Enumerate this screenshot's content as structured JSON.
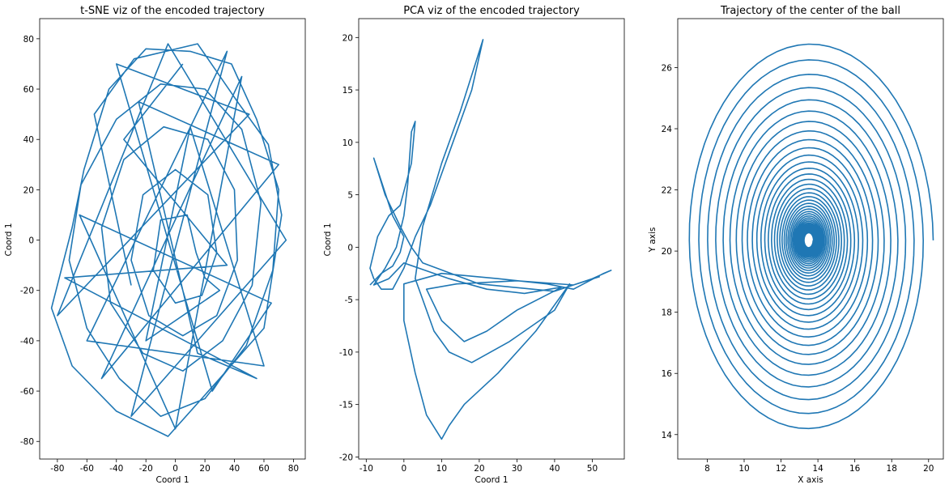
{
  "colors": {
    "series": "#1f77b4",
    "axes": "#000000",
    "background": "#ffffff"
  },
  "chart_data": [
    {
      "type": "line",
      "title": "t-SNE viz of the encoded trajectory",
      "xlabel": "Coord 1",
      "ylabel": "Coord 1",
      "xlim": [
        -92,
        88
      ],
      "ylim": [
        -87,
        88
      ],
      "xticks": [
        -80,
        -60,
        -40,
        -20,
        0,
        20,
        40,
        60,
        80
      ],
      "yticks": [
        -80,
        -60,
        -40,
        -20,
        0,
        20,
        40,
        60,
        80
      ],
      "grid": false,
      "series": [
        {
          "color": "#1f77b4",
          "points": [
            [
              -30,
              -18
            ],
            [
              -55,
              50
            ],
            [
              -28,
              72
            ],
            [
              15,
              78
            ],
            [
              42,
              55
            ],
            [
              63,
              38
            ],
            [
              72,
              10
            ],
            [
              60,
              -35
            ],
            [
              30,
              -55
            ],
            [
              -5,
              -78
            ],
            [
              -40,
              -68
            ],
            [
              -70,
              -50
            ],
            [
              -84,
              -27
            ],
            [
              -70,
              5
            ],
            [
              -62,
              28
            ],
            [
              -45,
              60
            ],
            [
              -20,
              76
            ],
            [
              10,
              75
            ],
            [
              38,
              70
            ],
            [
              55,
              48
            ],
            [
              70,
              20
            ],
            [
              66,
              -12
            ],
            [
              48,
              -42
            ],
            [
              20,
              -63
            ],
            [
              -10,
              -70
            ],
            [
              -38,
              -55
            ],
            [
              -60,
              -35
            ],
            [
              -72,
              -8
            ],
            [
              -64,
              22
            ],
            [
              -40,
              48
            ],
            [
              -10,
              62
            ],
            [
              20,
              60
            ],
            [
              45,
              44
            ],
            [
              58,
              15
            ],
            [
              52,
              -18
            ],
            [
              32,
              -40
            ],
            [
              5,
              -52
            ],
            [
              -22,
              -45
            ],
            [
              -44,
              -25
            ],
            [
              -50,
              5
            ],
            [
              -35,
              32
            ],
            [
              -8,
              45
            ],
            [
              22,
              40
            ],
            [
              40,
              20
            ],
            [
              42,
              -8
            ],
            [
              28,
              -30
            ],
            [
              5,
              -38
            ],
            [
              -18,
              -30
            ],
            [
              -30,
              -8
            ],
            [
              -22,
              18
            ],
            [
              0,
              28
            ],
            [
              22,
              18
            ],
            [
              28,
              -5
            ],
            [
              18,
              -22
            ],
            [
              0,
              -25
            ],
            [
              -15,
              -12
            ],
            [
              -10,
              8
            ],
            [
              8,
              10
            ],
            [
              14,
              -5
            ],
            [
              20,
              -15
            ],
            [
              30,
              -20
            ],
            [
              -20,
              -40
            ],
            [
              10,
              45
            ],
            [
              60,
              -50
            ],
            [
              -60,
              -40
            ],
            [
              35,
              75
            ],
            [
              -30,
              -70
            ],
            [
              75,
              0
            ],
            [
              -5,
              78
            ],
            [
              -80,
              -30
            ],
            [
              50,
              50
            ],
            [
              -40,
              70
            ],
            [
              25,
              -60
            ],
            [
              65,
              -25
            ],
            [
              -65,
              10
            ],
            [
              0,
              -75
            ],
            [
              45,
              65
            ],
            [
              -50,
              -55
            ],
            [
              70,
              30
            ],
            [
              -25,
              55
            ],
            [
              15,
              -45
            ],
            [
              55,
              -55
            ],
            [
              -75,
              -15
            ],
            [
              35,
              -10
            ],
            [
              -35,
              40
            ],
            [
              5,
              70
            ]
          ]
        }
      ]
    },
    {
      "type": "line",
      "title": "PCA viz of the encoded trajectory",
      "xlabel": "Coord 1",
      "ylabel": "Coord 1",
      "xlim": [
        -12,
        58.5
      ],
      "ylim": [
        -20.2,
        21.8
      ],
      "xticks": [
        -10,
        0,
        10,
        20,
        30,
        40,
        50
      ],
      "yticks": [
        -20,
        -15,
        -10,
        -5,
        0,
        5,
        10,
        15,
        20
      ],
      "grid": false,
      "series": [
        {
          "color": "#1f77b4",
          "points": [
            [
              -9,
              -3.6
            ],
            [
              -6,
              -2.5
            ],
            [
              -3,
              -1.8
            ],
            [
              -1,
              -0.5
            ],
            [
              0,
              1
            ],
            [
              -3,
              3
            ],
            [
              -8,
              8.5
            ],
            [
              -5,
              5
            ],
            [
              -1,
              2
            ],
            [
              2,
              0
            ],
            [
              5,
              -1.5
            ],
            [
              20,
              -3.5
            ],
            [
              40,
              -4.2
            ],
            [
              50,
              -3
            ],
            [
              55,
              -2.2
            ],
            [
              53,
              -2.5
            ],
            [
              45,
              -4
            ],
            [
              38,
              -3.5
            ],
            [
              25,
              -3
            ],
            [
              10,
              -2.5
            ],
            [
              0,
              -3.5
            ],
            [
              0,
              -7
            ],
            [
              3,
              -12
            ],
            [
              6,
              -16
            ],
            [
              10,
              -18.3
            ],
            [
              12,
              -17
            ],
            [
              16,
              -15
            ],
            [
              25,
              -12
            ],
            [
              35,
              -8
            ],
            [
              44,
              -3.5
            ],
            [
              40,
              -6
            ],
            [
              28,
              -9
            ],
            [
              18,
              -11
            ],
            [
              12,
              -10
            ],
            [
              8,
              -8
            ],
            [
              5,
              -5
            ],
            [
              3,
              -3
            ],
            [
              5,
              2
            ],
            [
              10,
              8
            ],
            [
              15,
              13
            ],
            [
              21,
              19.8
            ],
            [
              18,
              15
            ],
            [
              12,
              9
            ],
            [
              7,
              4
            ],
            [
              3,
              1
            ],
            [
              0,
              -2
            ],
            [
              -3,
              -4
            ],
            [
              -6,
              -4
            ],
            [
              -8,
              -3
            ],
            [
              -9,
              -2
            ],
            [
              -7,
              1
            ],
            [
              -4,
              3
            ],
            [
              -1,
              4
            ],
            [
              2,
              8
            ],
            [
              3,
              12
            ],
            [
              2,
              11
            ],
            [
              1,
              6
            ],
            [
              0,
              3
            ],
            [
              -2,
              0
            ],
            [
              -5,
              -2
            ],
            [
              -8,
              -3.6
            ],
            [
              -4,
              -3
            ],
            [
              0,
              -1.5
            ],
            [
              4,
              -2
            ],
            [
              12,
              -3
            ],
            [
              22,
              -4
            ],
            [
              32,
              -4.4
            ],
            [
              42,
              -3.8
            ],
            [
              30,
              -6
            ],
            [
              22,
              -8
            ],
            [
              16,
              -9
            ],
            [
              10,
              -7
            ],
            [
              6,
              -4
            ],
            [
              14,
              -3.5
            ],
            [
              30,
              -3.2
            ],
            [
              45,
              -3.6
            ],
            [
              52,
              -2.8
            ]
          ]
        }
      ]
    },
    {
      "type": "line",
      "title": "Trajectory of the center of the ball",
      "xlabel": "X axis",
      "ylabel": "Y axis",
      "xlim": [
        6.4,
        20.8
      ],
      "ylim": [
        13.2,
        27.6
      ],
      "xticks": [
        8,
        10,
        12,
        14,
        16,
        18,
        20
      ],
      "yticks": [
        14,
        16,
        18,
        20,
        22,
        24,
        26
      ],
      "grid": false,
      "series": [
        {
          "color": "#1f77b4",
          "spiral": {
            "center": [
              13.5,
              20.35
            ],
            "start_radius_x": 6.75,
            "start_radius_y": 6.55,
            "turns": 40,
            "decay_per_turn": 0.92
          }
        }
      ]
    }
  ]
}
